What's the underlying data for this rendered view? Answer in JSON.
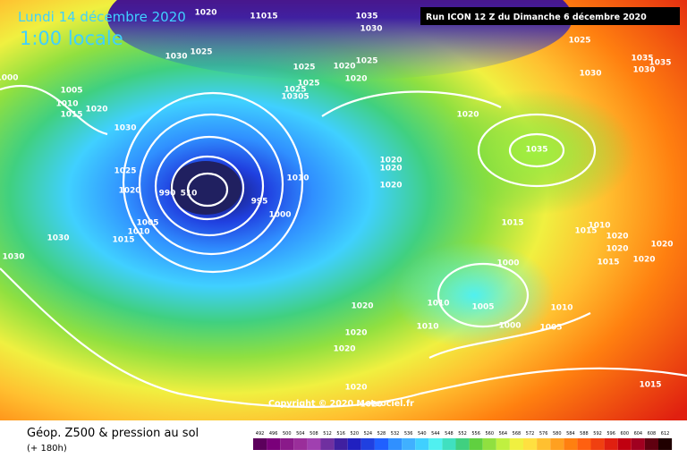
{
  "header": {
    "date": "Lundi 14 décembre 2020",
    "time": "1:00 locale",
    "run": "Run ICON 12 Z du Dimanche 6 décembre 2020"
  },
  "map": {
    "isobar_labels": [
      1020,
      11015,
      1035,
      1030,
      1025,
      1035,
      1035,
      1030,
      1030,
      1030,
      1025,
      1025,
      1020,
      1020,
      1025,
      1025,
      1025,
      10305,
      1000,
      1005,
      1010,
      1015,
      1020,
      1030,
      1020,
      1025,
      1020,
      1020,
      1020,
      1020,
      1035,
      1010,
      990,
      510,
      995,
      1000,
      1005,
      1010,
      1015,
      1030,
      1030,
      1015,
      1015,
      1010,
      1020,
      1020,
      1020,
      1020,
      1015,
      1000,
      1020,
      1010,
      1005,
      1010,
      1000,
      1010,
      1005,
      1020,
      1020,
      1020,
      1020,
      1015
    ],
    "copyright": "Copyright © 2020 Meteociel.fr"
  },
  "footer": {
    "title": "Géop. Z500 & pression au sol",
    "lead": "(+ 180h)",
    "scale_values": [
      492,
      496,
      500,
      504,
      508,
      512,
      516,
      520,
      524,
      528,
      532,
      536,
      540,
      544,
      548,
      552,
      556,
      560,
      564,
      568,
      572,
      576,
      580,
      584,
      588,
      592,
      596,
      600,
      604,
      608,
      612
    ],
    "scale_colors": [
      "#5c005c",
      "#7a007a",
      "#8a1a8a",
      "#9a2e9a",
      "#a040b0",
      "#7030a0",
      "#4020a0",
      "#2020c0",
      "#2040e0",
      "#2060ff",
      "#3090ff",
      "#40b0ff",
      "#40d0ff",
      "#50f0f0",
      "#40e0c0",
      "#40d080",
      "#60d040",
      "#90e040",
      "#c0f040",
      "#f0f040",
      "#ffe040",
      "#ffc030",
      "#ffa020",
      "#ff8010",
      "#ff6010",
      "#f04010",
      "#e02010",
      "#c00010",
      "#a00020",
      "#600010",
      "#200000"
    ]
  }
}
